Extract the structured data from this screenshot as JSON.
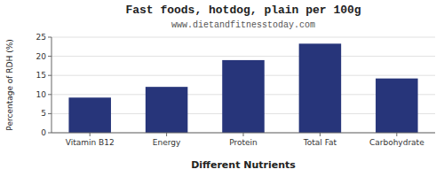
{
  "chart_data": {
    "type": "bar",
    "title": "Fast foods, hotdog, plain per 100g",
    "subtitle": "www.dietandfitnesstoday.com",
    "x_label": "Different Nutrients",
    "y_label": "Percentage of RDH (%)",
    "categories": [
      "Vitamin B12",
      "Energy",
      "Protein",
      "Total Fat",
      "Carbohydrate"
    ],
    "values": [
      9.2,
      12.0,
      19.0,
      23.3,
      14.2
    ],
    "color": "#27357a",
    "ylim": [
      0,
      25
    ],
    "yticks": [
      0,
      5,
      10,
      15,
      20,
      25
    ],
    "grid": true
  }
}
